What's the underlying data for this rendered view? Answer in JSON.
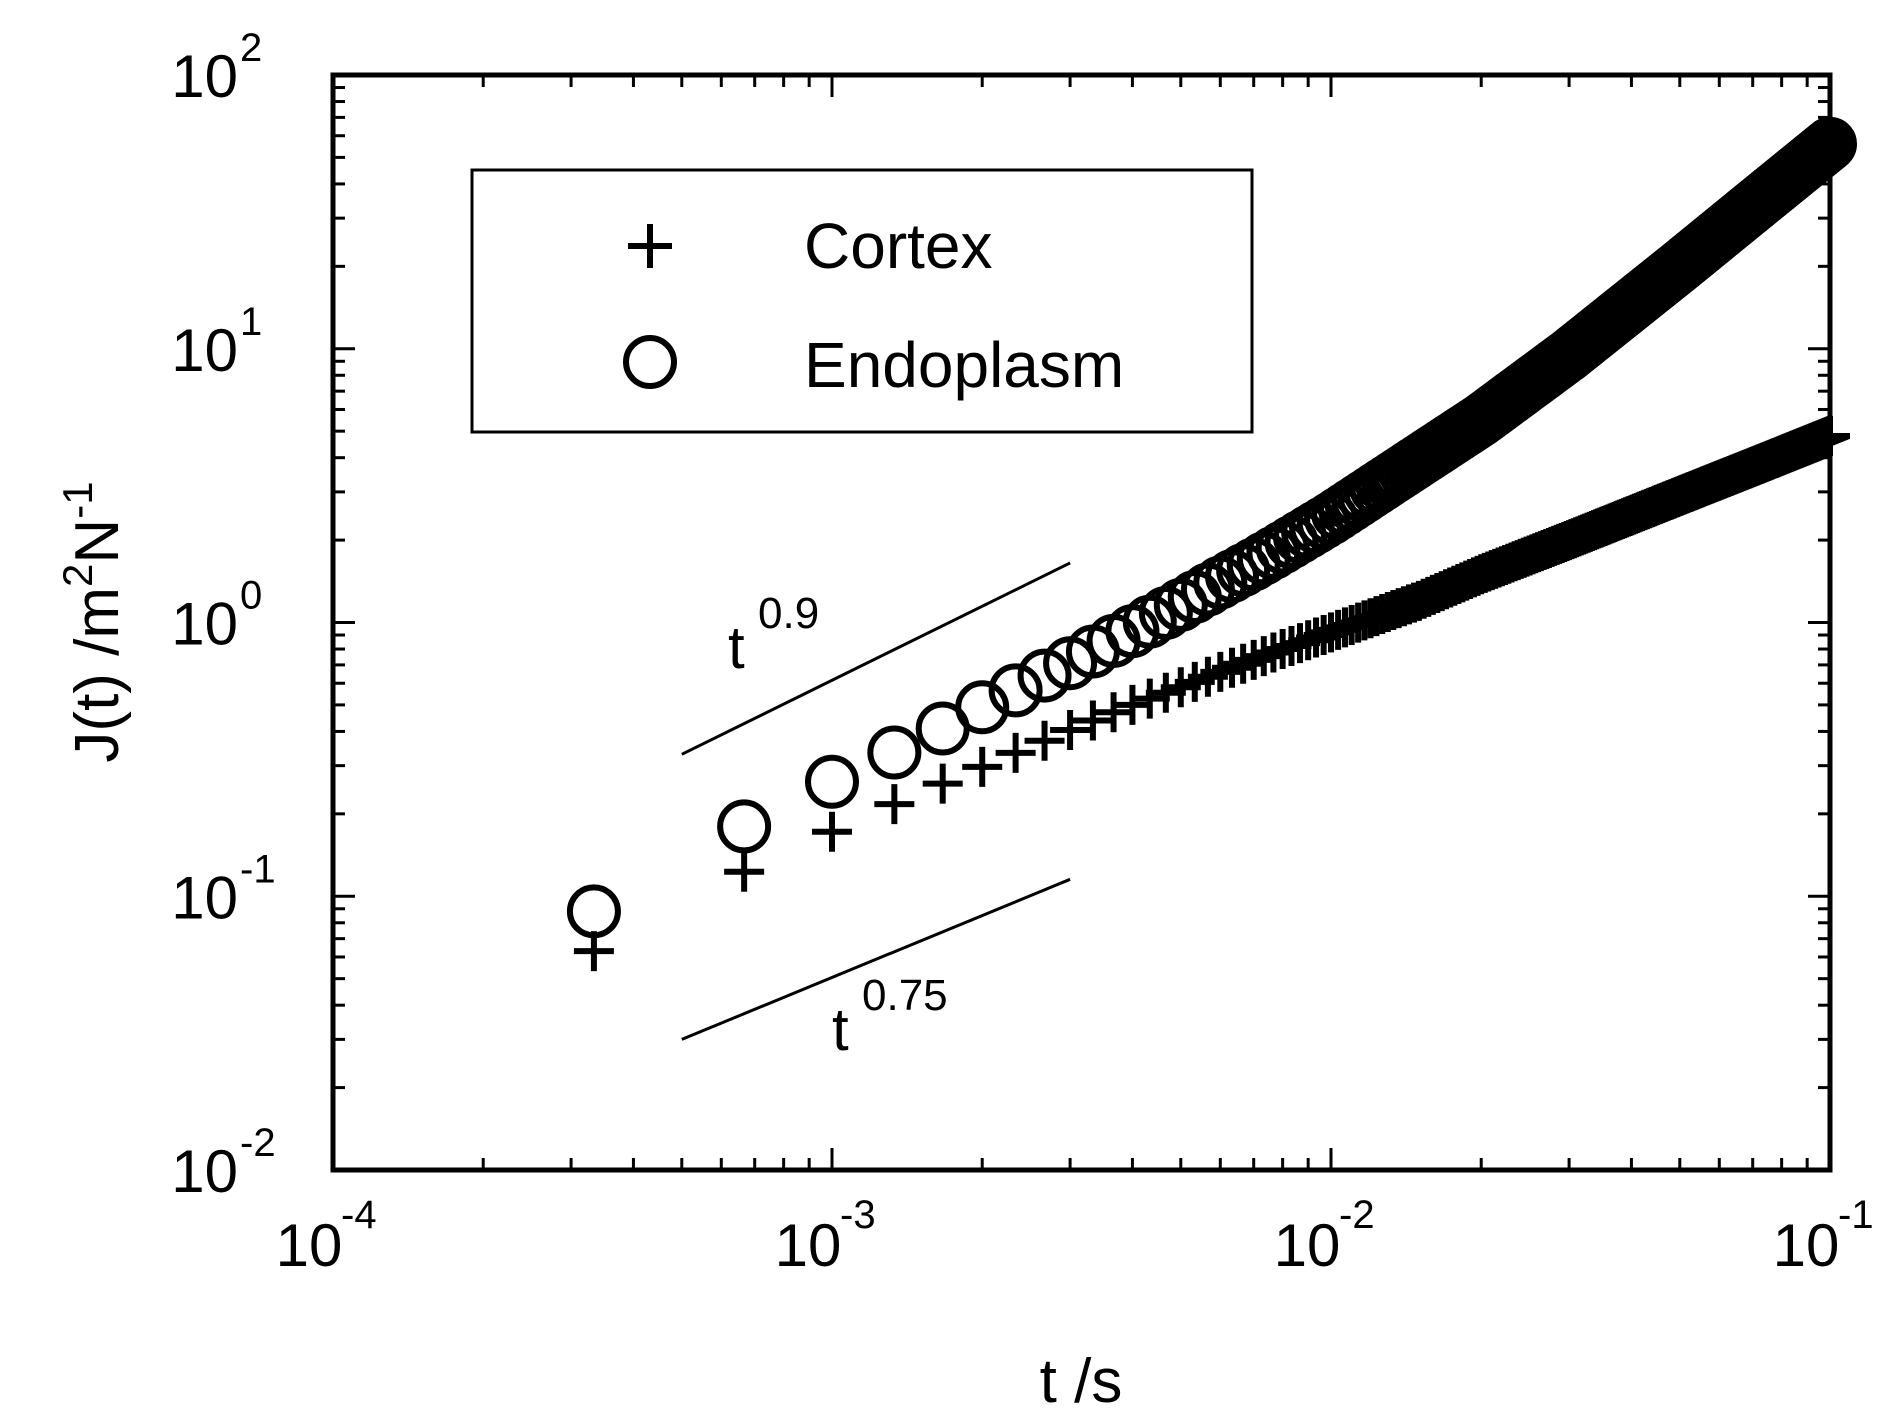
{
  "chart_data": {
    "type": "scatter",
    "x_scale": "log",
    "y_scale": "log",
    "xlim": [
      0.0001,
      0.1
    ],
    "ylim": [
      0.01,
      100
    ],
    "xlabel": "t /s",
    "ylabel": {
      "base": "J(t) /m",
      "sup1": "2",
      "mid": "N",
      "sup2": "-1"
    },
    "x_ticks": [
      {
        "value": 0.0001,
        "base": "10",
        "exp": "-4"
      },
      {
        "value": 0.001,
        "base": "10",
        "exp": "-3"
      },
      {
        "value": 0.01,
        "base": "10",
        "exp": "-2"
      },
      {
        "value": 0.1,
        "base": "10",
        "exp": "-1"
      }
    ],
    "y_ticks": [
      {
        "value": 0.01,
        "base": "10",
        "exp": "-2"
      },
      {
        "value": 0.1,
        "base": "10",
        "exp": "-1"
      },
      {
        "value": 1,
        "base": "10",
        "exp": "0"
      },
      {
        "value": 10,
        "base": "10",
        "exp": "1"
      },
      {
        "value": 100,
        "base": "10",
        "exp": "2"
      }
    ],
    "grid": false,
    "legend": {
      "placement": "top-left",
      "entries": [
        {
          "marker": "+",
          "label": "Cortex"
        },
        {
          "marker": "o",
          "label": "Endoplasm"
        }
      ]
    },
    "series": [
      {
        "name": "Cortex",
        "marker": "+",
        "x": [
          0.000333,
          0.000667,
          0.001,
          0.001333,
          0.001667,
          0.002,
          0.002333,
          0.002667,
          0.003,
          0.0035,
          0.004,
          0.005,
          0.006,
          0.007,
          0.008,
          0.01,
          0.015,
          0.02,
          0.03,
          0.05,
          0.07,
          0.1
        ],
        "y": [
          0.063,
          0.123,
          0.172,
          0.217,
          0.258,
          0.297,
          0.334,
          0.37,
          0.405,
          0.455,
          0.5,
          0.58,
          0.66,
          0.73,
          0.8,
          0.92,
          1.2,
          1.5,
          2.0,
          2.9,
          3.7,
          4.8
        ]
      },
      {
        "name": "Endoplasm",
        "marker": "o",
        "x": [
          0.000333,
          0.000667,
          0.001,
          0.001333,
          0.001667,
          0.002,
          0.002333,
          0.002667,
          0.003,
          0.0035,
          0.004,
          0.005,
          0.006,
          0.007,
          0.008,
          0.01,
          0.015,
          0.02,
          0.03,
          0.05,
          0.07,
          0.1
        ],
        "y": [
          0.088,
          0.18,
          0.262,
          0.335,
          0.41,
          0.49,
          0.565,
          0.64,
          0.71,
          0.82,
          0.93,
          1.16,
          1.4,
          1.63,
          1.88,
          2.4,
          3.9,
          5.5,
          9.5,
          20,
          33,
          56
        ]
      }
    ],
    "annotations": [
      {
        "type": "slope_line",
        "base": "t",
        "exp": "0.9",
        "x": [
          0.0005,
          0.003
        ],
        "y": [
          0.33,
          1.65
        ]
      },
      {
        "type": "slope_line",
        "base": "t",
        "exp": "0.75",
        "x": [
          0.0005,
          0.003
        ],
        "y": [
          0.03,
          0.1153
        ]
      }
    ]
  }
}
